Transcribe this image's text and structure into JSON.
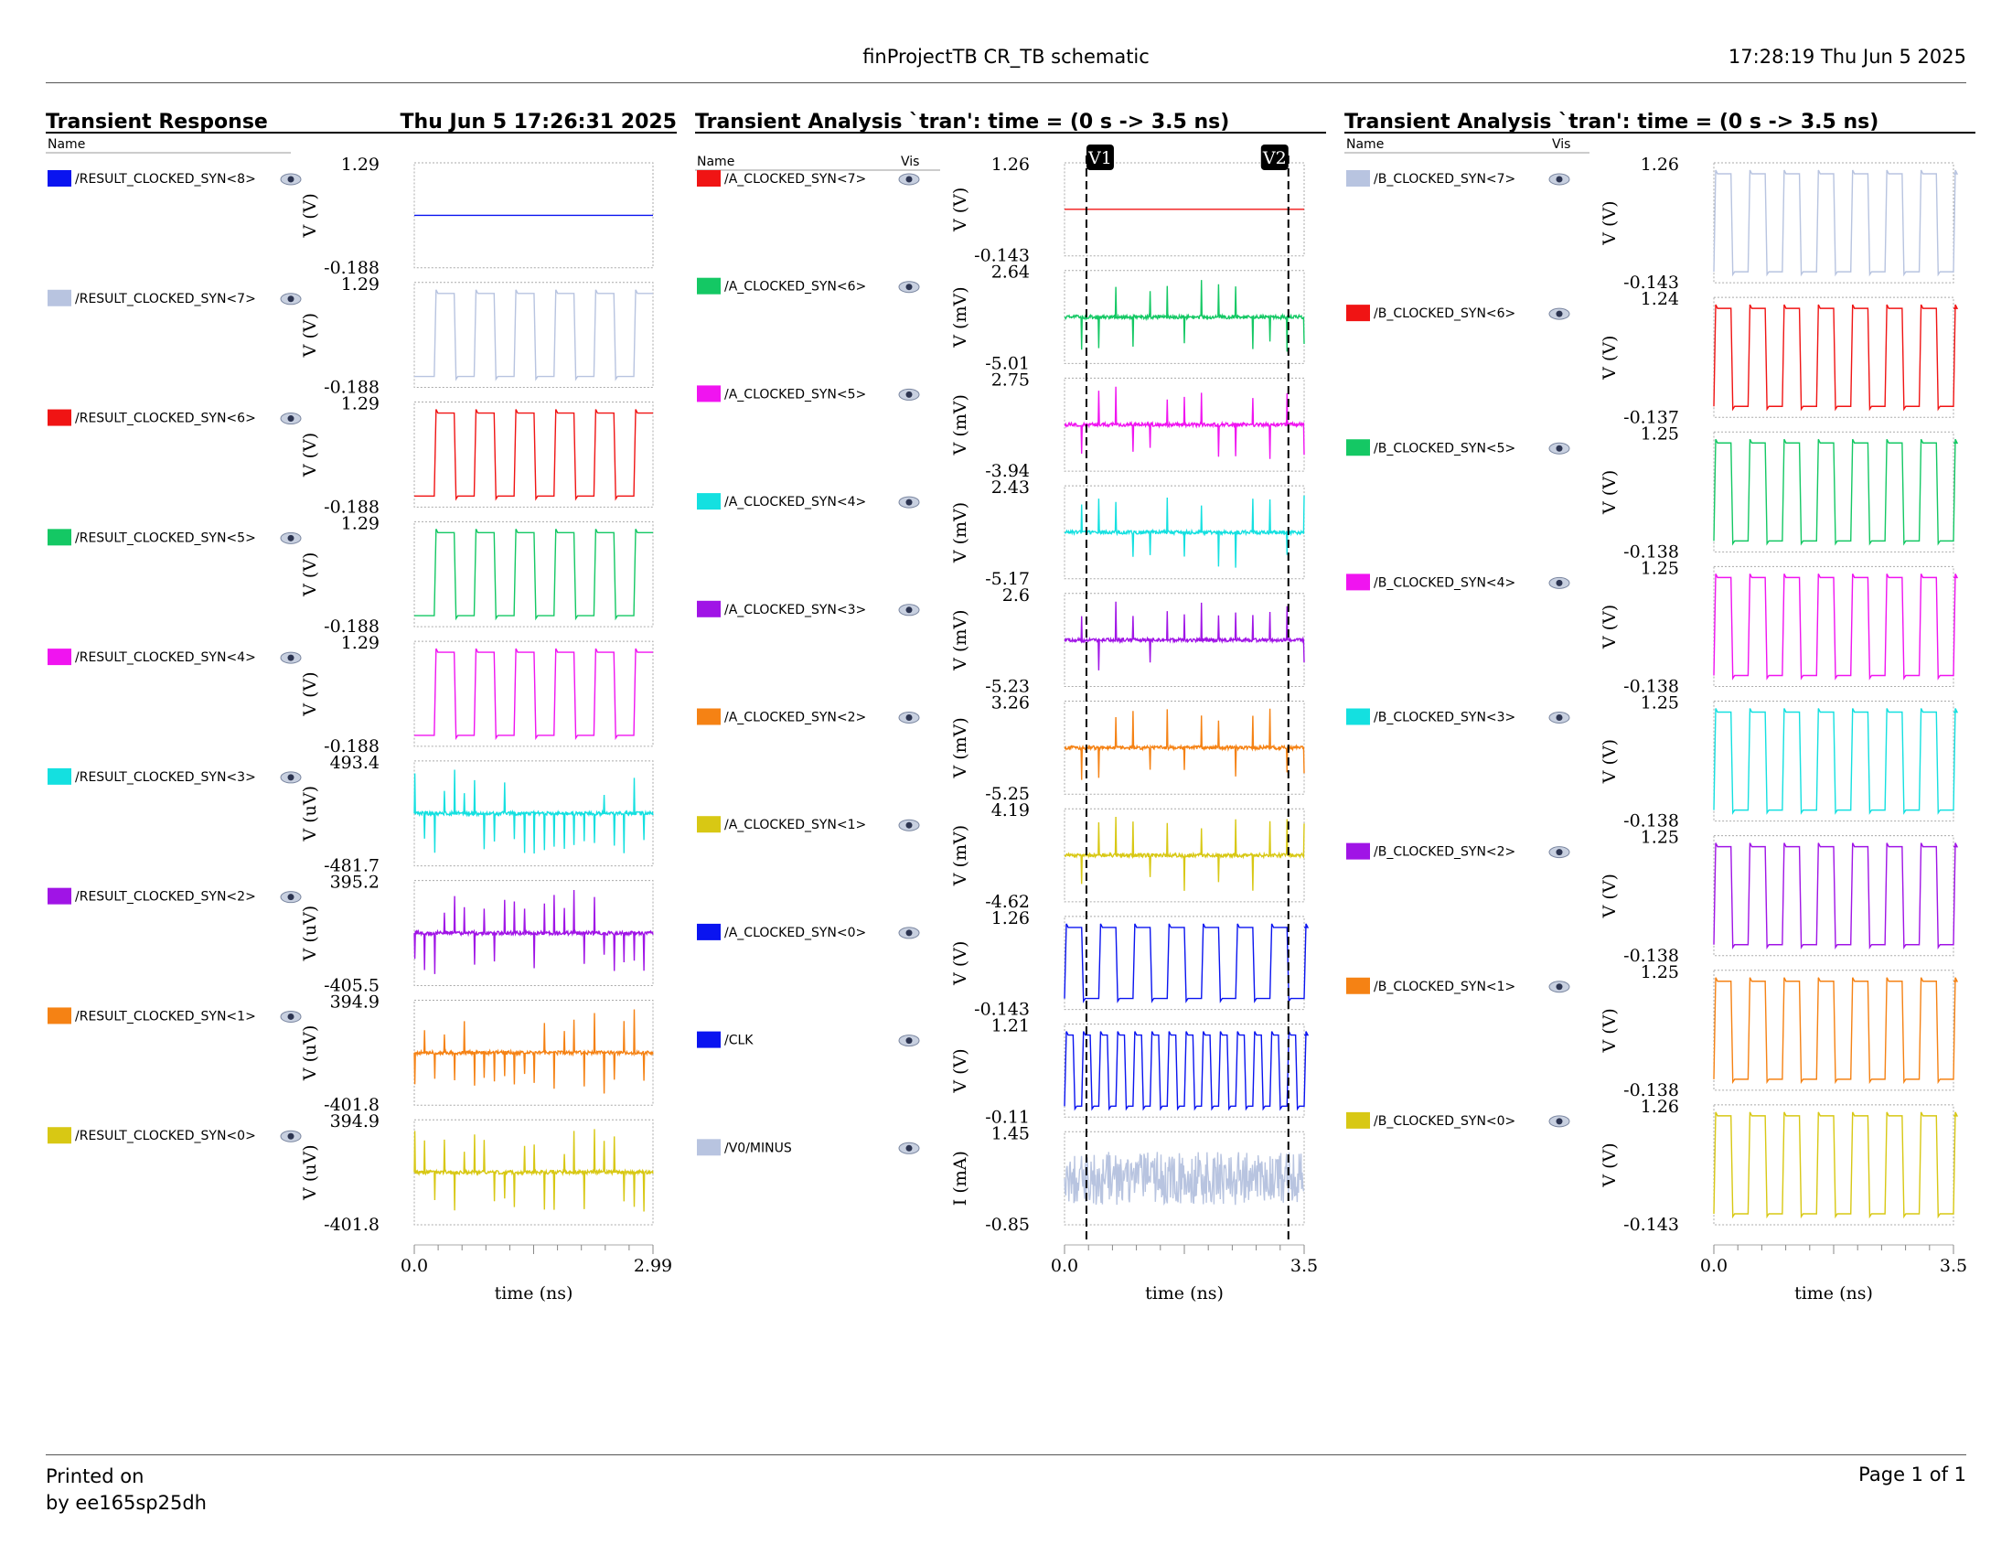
{
  "header": {
    "title": "finProjectTB CR_TB schematic",
    "timestamp": "17:28:19  Thu Jun 5 2025"
  },
  "footer": {
    "printed_on": "Printed on",
    "printed_by": "by ee165sp25dh",
    "page": "Page 1 of 1"
  },
  "colors": {
    "blue": "#0a14f0",
    "lavender": "#b8c4e0",
    "red": "#f01414",
    "green": "#14c864",
    "magenta": "#f014f0",
    "cyan": "#14e0e0",
    "purple": "#a014e6",
    "orange": "#f58214",
    "yellow": "#d8c814"
  },
  "icons": {
    "visibility": "eye-icon",
    "marker": "cursor-marker"
  },
  "chart_data": [
    {
      "type": "line",
      "title": "Transient Response",
      "subtitle": "Thu Jun 5 17:26:31 2025",
      "name_header": "Name",
      "vis_header": "",
      "xlabel": "time (ns)",
      "xlim": [
        0,
        2.99
      ],
      "x_ticks": [
        "0.0",
        "2.99"
      ],
      "series": [
        {
          "name": "/RESULT_CLOCKED_SYN<8>",
          "color": "blue",
          "ylabel": "V (V)",
          "ylim": [
            "1.29",
            "-0.188"
          ],
          "kind": "flat",
          "level": 0.0
        },
        {
          "name": "/RESULT_CLOCKED_SYN<7>",
          "color": "lavender",
          "ylabel": "V (V)",
          "ylim": [
            "1.29",
            "-0.188"
          ],
          "kind": "square",
          "period": 0.5,
          "high_start": 0.25
        },
        {
          "name": "/RESULT_CLOCKED_SYN<6>",
          "color": "red",
          "ylabel": "V (V)",
          "ylim": [
            "1.29",
            "-0.188"
          ],
          "kind": "square",
          "period": 0.5,
          "high_start": 0.25
        },
        {
          "name": "/RESULT_CLOCKED_SYN<5>",
          "color": "green",
          "ylabel": "V (V)",
          "ylim": [
            "1.29",
            "-0.188"
          ],
          "kind": "square",
          "period": 0.5,
          "high_start": 0.25
        },
        {
          "name": "/RESULT_CLOCKED_SYN<4>",
          "color": "magenta",
          "ylabel": "V (V)",
          "ylim": [
            "1.29",
            "-0.188"
          ],
          "kind": "square",
          "period": 0.5,
          "high_start": 0.25
        },
        {
          "name": "/RESULT_CLOCKED_SYN<3>",
          "color": "cyan",
          "ylabel": "V (uV)",
          "ylim": [
            "493.4",
            "-481.7"
          ],
          "kind": "glitch",
          "period": 0.25
        },
        {
          "name": "/RESULT_CLOCKED_SYN<2>",
          "color": "purple",
          "ylabel": "V (uV)",
          "ylim": [
            "395.2",
            "-405.5"
          ],
          "kind": "glitch",
          "period": 0.25
        },
        {
          "name": "/RESULT_CLOCKED_SYN<1>",
          "color": "orange",
          "ylabel": "V (uV)",
          "ylim": [
            "394.9",
            "-401.8"
          ],
          "kind": "glitch",
          "period": 0.25
        },
        {
          "name": "/RESULT_CLOCKED_SYN<0>",
          "color": "yellow",
          "ylabel": "V (uV)",
          "ylim": [
            "394.9",
            "-401.8"
          ],
          "kind": "glitch",
          "period": 0.25
        }
      ]
    },
    {
      "type": "line",
      "title": "Transient Analysis `tran': time = (0 s -> 3.5 ns)",
      "name_header": "Name",
      "vis_header": "Vis",
      "xlabel": "time (ns)",
      "xlim": [
        0,
        3.5
      ],
      "x_ticks": [
        "0.0",
        "3.5"
      ],
      "markers": [
        {
          "label": "V1",
          "x": 0.32
        },
        {
          "label": "V2",
          "x": 3.27
        }
      ],
      "series": [
        {
          "name": "/A_CLOCKED_SYN<7>",
          "color": "red",
          "ylabel": "V (V)",
          "ylim": [
            "1.26",
            "-0.143"
          ],
          "kind": "flat",
          "level": 0.0
        },
        {
          "name": "/A_CLOCKED_SYN<6>",
          "color": "green",
          "ylabel": "V (mV)",
          "ylim": [
            "2.64",
            "-5.01"
          ],
          "kind": "glitch",
          "period": 0.25
        },
        {
          "name": "/A_CLOCKED_SYN<5>",
          "color": "magenta",
          "ylabel": "V (mV)",
          "ylim": [
            "2.75",
            "-3.94"
          ],
          "kind": "glitch",
          "period": 0.25
        },
        {
          "name": "/A_CLOCKED_SYN<4>",
          "color": "cyan",
          "ylabel": "V (mV)",
          "ylim": [
            "2.43",
            "-5.17"
          ],
          "kind": "glitch",
          "period": 0.25
        },
        {
          "name": "/A_CLOCKED_SYN<3>",
          "color": "purple",
          "ylabel": "V (mV)",
          "ylim": [
            "2.6",
            "-5.23"
          ],
          "kind": "glitch",
          "period": 0.25
        },
        {
          "name": "/A_CLOCKED_SYN<2>",
          "color": "orange",
          "ylabel": "V (mV)",
          "ylim": [
            "3.26",
            "-5.25"
          ],
          "kind": "glitch",
          "period": 0.25
        },
        {
          "name": "/A_CLOCKED_SYN<1>",
          "color": "yellow",
          "ylabel": "V (mV)",
          "ylim": [
            "4.19",
            "-4.62"
          ],
          "kind": "glitch",
          "period": 0.25
        },
        {
          "name": "/A_CLOCKED_SYN<0>",
          "color": "blue",
          "ylabel": "V (V)",
          "ylim": [
            "1.26",
            "-0.143"
          ],
          "kind": "square",
          "period": 0.5,
          "high_start": 0.0
        },
        {
          "name": "/CLK",
          "color": "blue",
          "ylabel": "V (V)",
          "ylim": [
            "1.21",
            "-0.11"
          ],
          "kind": "square",
          "period": 0.25,
          "high_start": 0.0
        },
        {
          "name": "/V0/MINUS",
          "color": "lavender",
          "ylabel": "I (mA)",
          "ylim": [
            "1.45",
            "-0.85"
          ],
          "kind": "noise"
        }
      ]
    },
    {
      "type": "line",
      "title": "Transient Analysis `tran': time = (0 s -> 3.5 ns)",
      "name_header": "Name",
      "vis_header": "Vis",
      "xlabel": "time (ns)",
      "xlim": [
        0,
        3.5
      ],
      "x_ticks": [
        "0.0",
        "3.5"
      ],
      "series": [
        {
          "name": "/B_CLOCKED_SYN<7>",
          "color": "lavender",
          "ylabel": "V (V)",
          "ylim": [
            "1.26",
            "-0.143"
          ],
          "kind": "square",
          "period": 0.5,
          "high_start": 0.0
        },
        {
          "name": "/B_CLOCKED_SYN<6>",
          "color": "red",
          "ylabel": "V (V)",
          "ylim": [
            "1.24",
            "-0.137"
          ],
          "kind": "square",
          "period": 0.5,
          "high_start": 0.0
        },
        {
          "name": "/B_CLOCKED_SYN<5>",
          "color": "green",
          "ylabel": "V (V)",
          "ylim": [
            "1.25",
            "-0.138"
          ],
          "kind": "square",
          "period": 0.5,
          "high_start": 0.0
        },
        {
          "name": "/B_CLOCKED_SYN<4>",
          "color": "magenta",
          "ylabel": "V (V)",
          "ylim": [
            "1.25",
            "-0.138"
          ],
          "kind": "square",
          "period": 0.5,
          "high_start": 0.0
        },
        {
          "name": "/B_CLOCKED_SYN<3>",
          "color": "cyan",
          "ylabel": "V (V)",
          "ylim": [
            "1.25",
            "-0.138"
          ],
          "kind": "square",
          "period": 0.5,
          "high_start": 0.0
        },
        {
          "name": "/B_CLOCKED_SYN<2>",
          "color": "purple",
          "ylabel": "V (V)",
          "ylim": [
            "1.25",
            "-0.138"
          ],
          "kind": "square",
          "period": 0.5,
          "high_start": 0.0
        },
        {
          "name": "/B_CLOCKED_SYN<1>",
          "color": "orange",
          "ylabel": "V (V)",
          "ylim": [
            "1.25",
            "-0.138"
          ],
          "kind": "square",
          "period": 0.5,
          "high_start": 0.0
        },
        {
          "name": "/B_CLOCKED_SYN<0>",
          "color": "yellow",
          "ylabel": "V (V)",
          "ylim": [
            "1.26",
            "-0.143"
          ],
          "kind": "square",
          "period": 0.5,
          "high_start": 0.0
        }
      ]
    }
  ]
}
